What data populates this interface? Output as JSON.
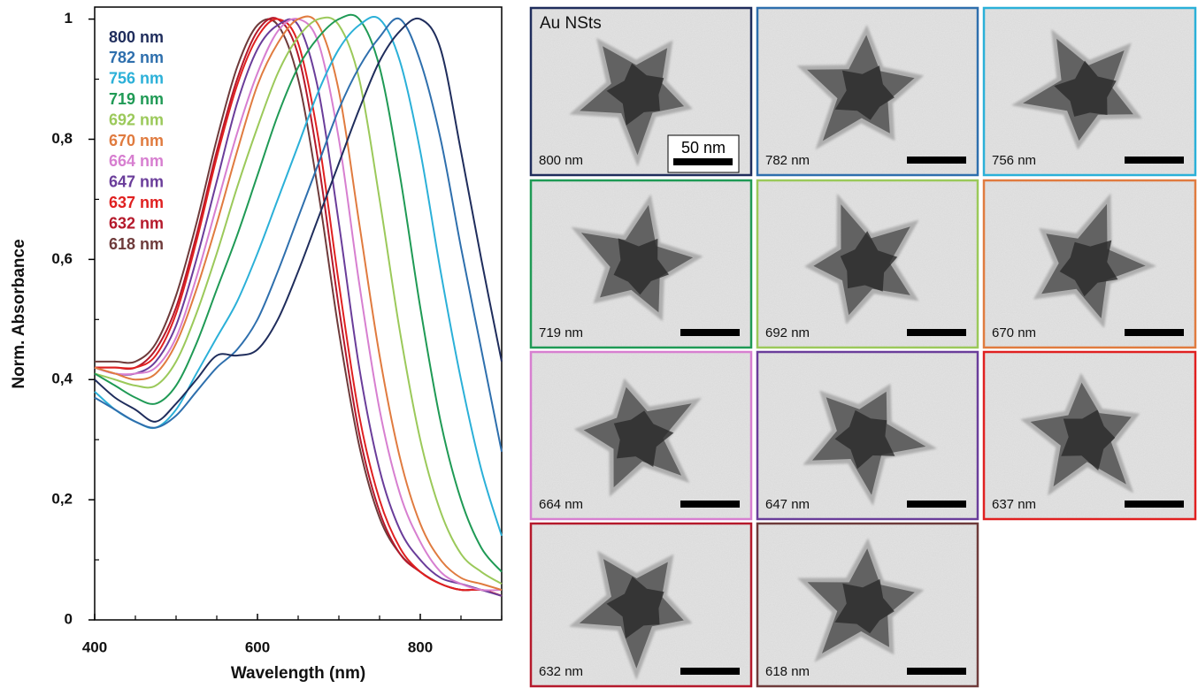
{
  "chart_data": {
    "type": "line",
    "y_label": "Norm. Absorbance",
    "x_label": "Wavelength (nm)",
    "xlim": [
      400,
      900
    ],
    "xticks": [
      400,
      600,
      800
    ],
    "xminorticks": [
      450,
      500,
      550,
      650,
      700,
      750,
      850,
      900
    ],
    "ylim": [
      0,
      1.02
    ],
    "yticks": [
      0,
      {
        "value": 0.2,
        "label": "0,2"
      },
      {
        "value": 0.4,
        "label": "0,4"
      },
      {
        "value": 0.6,
        "label": "0,6"
      },
      {
        "value": 0.8,
        "label": "0,8"
      },
      1
    ],
    "yminorticks": [
      0.1,
      0.3,
      0.5,
      0.7,
      0.9
    ],
    "legend": "upper left",
    "x": [
      400,
      425,
      450,
      475,
      500,
      525,
      550,
      575,
      600,
      625,
      650,
      675,
      700,
      725,
      750,
      775,
      800,
      825,
      850,
      875,
      900
    ],
    "series": [
      {
        "name": "800 nm",
        "color": "#1f2d5c",
        "values": [
          0.4,
          0.37,
          0.35,
          0.33,
          0.36,
          0.4,
          0.44,
          0.44,
          0.45,
          0.5,
          0.58,
          0.67,
          0.76,
          0.85,
          0.93,
          0.98,
          1.0,
          0.95,
          0.78,
          0.6,
          0.43
        ]
      },
      {
        "name": "782 nm",
        "color": "#2e6fad",
        "values": [
          0.37,
          0.35,
          0.33,
          0.32,
          0.34,
          0.38,
          0.42,
          0.45,
          0.5,
          0.58,
          0.67,
          0.76,
          0.85,
          0.92,
          0.97,
          1.0,
          0.93,
          0.8,
          0.62,
          0.45,
          0.28
        ]
      },
      {
        "name": "756 nm",
        "color": "#2bb0d8",
        "values": [
          0.38,
          0.35,
          0.33,
          0.32,
          0.35,
          0.41,
          0.47,
          0.53,
          0.61,
          0.7,
          0.79,
          0.88,
          0.95,
          0.99,
          1.0,
          0.93,
          0.78,
          0.58,
          0.4,
          0.25,
          0.14
        ]
      },
      {
        "name": "719 nm",
        "color": "#1f9a55",
        "values": [
          0.41,
          0.39,
          0.37,
          0.36,
          0.39,
          0.46,
          0.55,
          0.64,
          0.74,
          0.84,
          0.92,
          0.97,
          1.0,
          1.0,
          0.92,
          0.74,
          0.52,
          0.33,
          0.2,
          0.12,
          0.08
        ]
      },
      {
        "name": "692 nm",
        "color": "#9bc95a",
        "values": [
          0.41,
          0.4,
          0.39,
          0.39,
          0.43,
          0.51,
          0.61,
          0.72,
          0.82,
          0.91,
          0.97,
          1.0,
          0.99,
          0.9,
          0.7,
          0.48,
          0.3,
          0.18,
          0.11,
          0.08,
          0.06
        ]
      },
      {
        "name": "670 nm",
        "color": "#e07b3f",
        "values": [
          0.42,
          0.41,
          0.4,
          0.41,
          0.46,
          0.55,
          0.66,
          0.78,
          0.89,
          0.96,
          1.0,
          0.99,
          0.88,
          0.66,
          0.44,
          0.27,
          0.16,
          0.1,
          0.07,
          0.06,
          0.05
        ]
      },
      {
        "name": "664 nm",
        "color": "#d77fd0",
        "values": [
          0.42,
          0.41,
          0.41,
          0.42,
          0.47,
          0.57,
          0.69,
          0.81,
          0.91,
          0.98,
          1.0,
          0.96,
          0.8,
          0.56,
          0.35,
          0.21,
          0.13,
          0.08,
          0.06,
          0.05,
          0.05
        ]
      },
      {
        "name": "647 nm",
        "color": "#6a3d9a",
        "values": [
          0.42,
          0.41,
          0.41,
          0.43,
          0.49,
          0.6,
          0.73,
          0.86,
          0.95,
          0.99,
          0.99,
          0.88,
          0.66,
          0.42,
          0.25,
          0.15,
          0.1,
          0.07,
          0.06,
          0.05,
          0.04
        ]
      },
      {
        "name": "637 nm",
        "color": "#e02020",
        "values": [
          0.42,
          0.42,
          0.42,
          0.44,
          0.51,
          0.63,
          0.77,
          0.89,
          0.97,
          1.0,
          0.96,
          0.8,
          0.56,
          0.34,
          0.2,
          0.12,
          0.08,
          0.06,
          0.05,
          0.05,
          0.04
        ]
      },
      {
        "name": "632 nm",
        "color": "#b5192b",
        "values": [
          0.42,
          0.42,
          0.42,
          0.45,
          0.52,
          0.64,
          0.78,
          0.9,
          0.98,
          1.0,
          0.94,
          0.76,
          0.52,
          0.31,
          0.18,
          0.11,
          0.08,
          0.06,
          0.05,
          0.05,
          0.04
        ]
      },
      {
        "name": "618 nm",
        "color": "#6e3b3b",
        "values": [
          0.43,
          0.43,
          0.43,
          0.46,
          0.54,
          0.66,
          0.8,
          0.92,
          0.99,
          0.99,
          0.9,
          0.71,
          0.48,
          0.29,
          0.17,
          0.11,
          0.08,
          0.06,
          0.05,
          0.05,
          0.04
        ]
      }
    ]
  },
  "tem": {
    "title": "Au NSts",
    "scale_bar": "50 nm"
  }
}
